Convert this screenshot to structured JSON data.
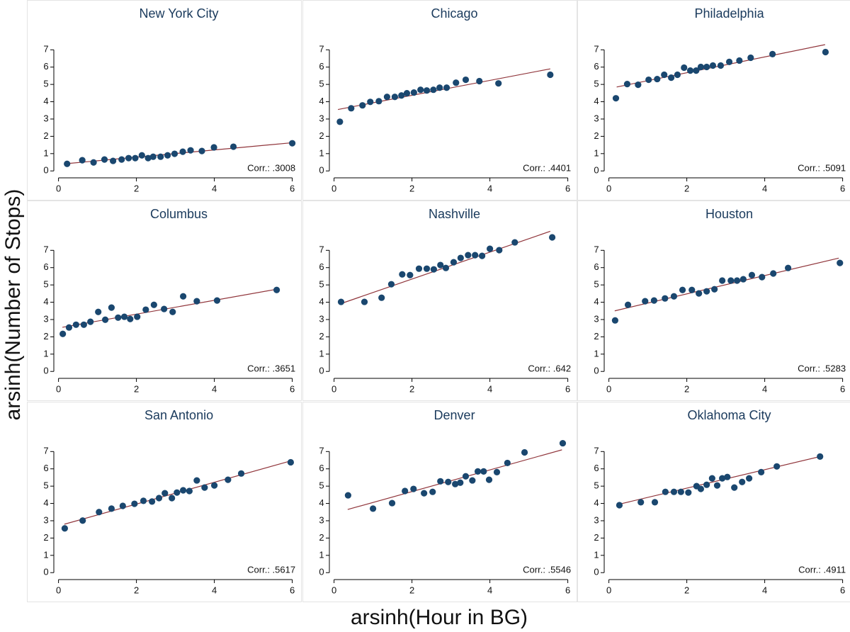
{
  "ylabel": "arsinh(Number of Stops)",
  "xlabel": "arsinh(Hour in BG)",
  "chart_data": [
    {
      "type": "scatter",
      "title": "New York City",
      "annotation": "Corr.: .3008",
      "color": "#1a476f",
      "x": [
        0.22,
        0.61,
        0.9,
        1.18,
        1.4,
        1.62,
        1.8,
        1.97,
        2.14,
        2.3,
        2.43,
        2.62,
        2.8,
        2.98,
        3.19,
        3.39,
        3.68,
        3.99,
        4.49,
        6.0
      ],
      "y": [
        0.41,
        0.62,
        0.49,
        0.66,
        0.58,
        0.66,
        0.74,
        0.74,
        0.9,
        0.74,
        0.82,
        0.82,
        0.9,
        0.99,
        1.11,
        1.19,
        1.15,
        1.36,
        1.4,
        1.6
      ],
      "fit": {
        "color": "#90353b",
        "x": [
          0.2,
          6.0
        ],
        "y": [
          0.42,
          1.63
        ]
      },
      "xlim": [
        -0.12,
        6.3
      ],
      "ylim": [
        -0.4,
        8.2
      ],
      "xticks": [
        0,
        2,
        4,
        6
      ],
      "yticks": [
        0,
        1,
        2,
        3,
        4,
        5,
        6,
        7
      ]
    },
    {
      "type": "scatter",
      "title": "Chicago",
      "annotation": "Corr.: .4401",
      "color": "#1a476f",
      "x": [
        0.15,
        0.44,
        0.73,
        0.93,
        1.15,
        1.36,
        1.56,
        1.73,
        1.87,
        2.05,
        2.22,
        2.38,
        2.55,
        2.71,
        2.89,
        3.13,
        3.38,
        3.73,
        4.22,
        5.55
      ],
      "y": [
        2.84,
        3.62,
        3.79,
        3.99,
        4.03,
        4.28,
        4.28,
        4.36,
        4.49,
        4.53,
        4.69,
        4.65,
        4.69,
        4.81,
        4.81,
        5.1,
        5.27,
        5.19,
        5.06,
        5.56
      ],
      "fit": {
        "color": "#90353b",
        "x": [
          0.1,
          5.55
        ],
        "y": [
          3.55,
          5.9
        ]
      },
      "xlim": [
        -0.12,
        6.3
      ],
      "ylim": [
        -0.4,
        8.2
      ],
      "xticks": [
        0,
        2,
        4,
        6
      ],
      "yticks": [
        0,
        1,
        2,
        3,
        4,
        5,
        6,
        7
      ]
    },
    {
      "type": "scatter",
      "title": "Philadelphia",
      "annotation": "Corr.: .5091",
      "color": "#1a476f",
      "x": [
        0.18,
        0.47,
        0.75,
        1.02,
        1.24,
        1.42,
        1.6,
        1.76,
        1.93,
        2.09,
        2.24,
        2.36,
        2.51,
        2.67,
        2.87,
        3.09,
        3.35,
        3.64,
        4.2,
        5.56
      ],
      "y": [
        4.2,
        5.02,
        4.98,
        5.27,
        5.31,
        5.56,
        5.39,
        5.56,
        5.97,
        5.8,
        5.8,
        6.01,
        6.01,
        6.09,
        6.09,
        6.3,
        6.38,
        6.54,
        6.75,
        6.87
      ],
      "fit": {
        "color": "#90353b",
        "x": [
          0.2,
          5.55
        ],
        "y": [
          4.85,
          7.3
        ]
      },
      "xlim": [
        -0.12,
        6.3
      ],
      "ylim": [
        -0.4,
        8.2
      ],
      "xticks": [
        0,
        2,
        4,
        6
      ],
      "yticks": [
        0,
        1,
        2,
        3,
        4,
        5,
        6,
        7
      ]
    },
    {
      "type": "scatter",
      "title": "Columbus",
      "annotation": "Corr.: .3651",
      "color": "#1a476f",
      "x": [
        0.11,
        0.27,
        0.45,
        0.65,
        0.82,
        1.02,
        1.2,
        1.36,
        1.53,
        1.69,
        1.84,
        2.02,
        2.24,
        2.45,
        2.71,
        2.93,
        3.2,
        3.55,
        4.07,
        5.6
      ],
      "y": [
        2.17,
        2.54,
        2.7,
        2.7,
        2.87,
        3.44,
        2.99,
        3.69,
        3.11,
        3.16,
        3.03,
        3.16,
        3.57,
        3.85,
        3.61,
        3.44,
        4.34,
        4.06,
        4.1,
        4.71
      ],
      "fit": {
        "color": "#90353b",
        "x": [
          0.1,
          5.6
        ],
        "y": [
          2.55,
          4.75
        ]
      },
      "xlim": [
        -0.12,
        6.3
      ],
      "ylim": [
        -0.4,
        8.2
      ],
      "xticks": [
        0,
        2,
        4,
        6
      ],
      "yticks": [
        0,
        1,
        2,
        3,
        4,
        5,
        6,
        7
      ]
    },
    {
      "type": "scatter",
      "title": "Nashville",
      "annotation": "Corr.: .642",
      "color": "#1a476f",
      "x": [
        0.18,
        0.78,
        1.22,
        1.47,
        1.75,
        1.95,
        2.18,
        2.38,
        2.56,
        2.73,
        2.87,
        3.07,
        3.25,
        3.44,
        3.62,
        3.8,
        4.0,
        4.24,
        4.64,
        5.6
      ],
      "y": [
        4.02,
        4.02,
        4.26,
        5.04,
        5.61,
        5.57,
        5.94,
        5.94,
        5.9,
        6.15,
        5.98,
        6.31,
        6.56,
        6.72,
        6.72,
        6.68,
        7.09,
        7.01,
        7.46,
        7.75
      ],
      "fit": {
        "color": "#90353b",
        "x": [
          0.15,
          5.55
        ],
        "y": [
          3.9,
          8.1
        ]
      },
      "xlim": [
        -0.12,
        6.3
      ],
      "ylim": [
        -0.4,
        8.2
      ],
      "xticks": [
        0,
        2,
        4,
        6
      ],
      "yticks": [
        0,
        1,
        2,
        3,
        4,
        5,
        6,
        7
      ]
    },
    {
      "type": "scatter",
      "title": "Houston",
      "annotation": "Corr.: .5283",
      "color": "#1a476f",
      "x": [
        0.16,
        0.49,
        0.93,
        1.16,
        1.44,
        1.67,
        1.89,
        2.13,
        2.31,
        2.51,
        2.71,
        2.91,
        3.13,
        3.29,
        3.45,
        3.67,
        3.93,
        4.22,
        4.6,
        5.93
      ],
      "y": [
        2.95,
        3.85,
        4.06,
        4.1,
        4.22,
        4.34,
        4.71,
        4.71,
        4.51,
        4.63,
        4.75,
        5.25,
        5.25,
        5.25,
        5.33,
        5.57,
        5.45,
        5.66,
        5.98,
        6.27
      ],
      "fit": {
        "color": "#90353b",
        "x": [
          0.15,
          5.9
        ],
        "y": [
          3.5,
          6.55
        ]
      },
      "xlim": [
        -0.12,
        6.3
      ],
      "ylim": [
        -0.4,
        8.2
      ],
      "xticks": [
        0,
        2,
        4,
        6
      ],
      "yticks": [
        0,
        1,
        2,
        3,
        4,
        5,
        6,
        7
      ]
    },
    {
      "type": "scatter",
      "title": "San Antonio",
      "annotation": "Corr.: .5617",
      "color": "#1a476f",
      "x": [
        0.16,
        0.62,
        1.04,
        1.36,
        1.65,
        1.95,
        2.18,
        2.4,
        2.58,
        2.73,
        2.91,
        3.04,
        3.2,
        3.36,
        3.55,
        3.75,
        4.0,
        4.35,
        4.69,
        5.96
      ],
      "y": [
        2.56,
        3.01,
        3.5,
        3.7,
        3.86,
        3.98,
        4.15,
        4.11,
        4.31,
        4.59,
        4.31,
        4.63,
        4.76,
        4.72,
        5.33,
        4.92,
        5.04,
        5.37,
        5.73,
        6.38
      ],
      "fit": {
        "color": "#90353b",
        "x": [
          0.15,
          5.95
        ],
        "y": [
          2.8,
          6.45
        ]
      },
      "xlim": [
        -0.12,
        6.3
      ],
      "ylim": [
        -0.4,
        8.2
      ],
      "xticks": [
        0,
        2,
        4,
        6
      ],
      "yticks": [
        0,
        1,
        2,
        3,
        4,
        5,
        6,
        7
      ]
    },
    {
      "type": "scatter",
      "title": "Denver",
      "annotation": "Corr.: .5546",
      "color": "#1a476f",
      "x": [
        0.36,
        1.0,
        1.49,
        1.82,
        2.04,
        2.31,
        2.53,
        2.73,
        2.93,
        3.11,
        3.24,
        3.38,
        3.55,
        3.69,
        3.84,
        3.98,
        4.18,
        4.45,
        4.89,
        5.87
      ],
      "y": [
        4.47,
        3.7,
        4.02,
        4.72,
        4.84,
        4.59,
        4.67,
        5.28,
        5.24,
        5.12,
        5.2,
        5.57,
        5.33,
        5.85,
        5.85,
        5.37,
        5.81,
        6.34,
        6.95,
        7.48
      ],
      "fit": {
        "color": "#90353b",
        "x": [
          0.35,
          5.85
        ],
        "y": [
          3.65,
          7.1
        ]
      },
      "xlim": [
        -0.12,
        6.3
      ],
      "ylim": [
        -0.4,
        8.2
      ],
      "xticks": [
        0,
        2,
        4,
        6
      ],
      "yticks": [
        0,
        1,
        2,
        3,
        4,
        5,
        6,
        7
      ]
    },
    {
      "type": "scatter",
      "title": "Oklahoma City",
      "annotation": "Corr.: .4911",
      "color": "#1a476f",
      "x": [
        0.27,
        0.82,
        1.18,
        1.45,
        1.67,
        1.85,
        2.04,
        2.25,
        2.36,
        2.51,
        2.65,
        2.78,
        2.91,
        3.04,
        3.22,
        3.42,
        3.6,
        3.91,
        4.31,
        5.42
      ],
      "y": [
        3.9,
        4.07,
        4.07,
        4.67,
        4.67,
        4.67,
        4.63,
        5.0,
        4.84,
        5.08,
        5.45,
        5.04,
        5.45,
        5.53,
        4.92,
        5.24,
        5.45,
        5.81,
        6.14,
        6.71
      ],
      "fit": {
        "color": "#90353b",
        "x": [
          0.25,
          5.4
        ],
        "y": [
          3.95,
          6.7
        ]
      },
      "xlim": [
        -0.12,
        6.3
      ],
      "ylim": [
        -0.4,
        8.2
      ],
      "xticks": [
        0,
        2,
        4,
        6
      ],
      "yticks": [
        0,
        1,
        2,
        3,
        4,
        5,
        6,
        7
      ]
    }
  ]
}
